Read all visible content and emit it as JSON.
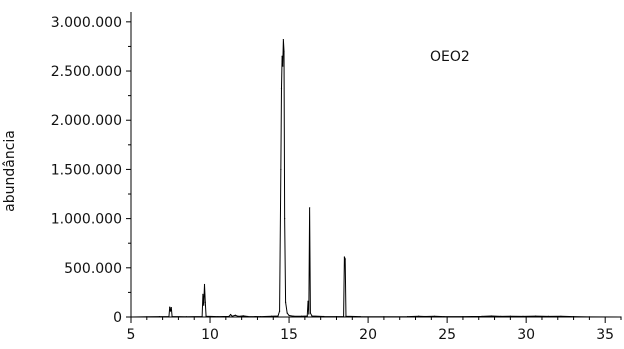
{
  "chart_data": {
    "type": "line",
    "title": "",
    "xlabel": "",
    "ylabel": "abundância",
    "annotation": "OEO2",
    "xlim": [
      5,
      36
    ],
    "ylim": [
      0,
      3100000
    ],
    "x_ticks": [
      5,
      10,
      15,
      20,
      25,
      30,
      35
    ],
    "x_tick_labels": [
      "5",
      "10",
      "15",
      "20",
      "25",
      "30",
      "35"
    ],
    "y_ticks": [
      0,
      500000,
      1000000,
      1500000,
      2000000,
      2500000,
      3000000
    ],
    "y_tick_labels": [
      "0",
      "500.000",
      "1.000.000",
      "1.500.000",
      "2.000.000",
      "2.500.000",
      "3.000.000"
    ],
    "grid": false,
    "legend": "none",
    "line_color": "#000000",
    "series": [
      {
        "points": [
          [
            5.0,
            0
          ],
          [
            6.0,
            2000
          ],
          [
            6.8,
            4000
          ],
          [
            7.4,
            5000
          ],
          [
            7.45,
            100000
          ],
          [
            7.5,
            60000
          ],
          [
            7.55,
            95000
          ],
          [
            7.6,
            5000
          ],
          [
            8.5,
            3000
          ],
          [
            9.5,
            5000
          ],
          [
            9.55,
            230000
          ],
          [
            9.6,
            120000
          ],
          [
            9.65,
            330000
          ],
          [
            9.7,
            150000
          ],
          [
            9.75,
            8000
          ],
          [
            10.5,
            4000
          ],
          [
            11.2,
            6000
          ],
          [
            11.3,
            25000
          ],
          [
            11.4,
            8000
          ],
          [
            11.6,
            18000
          ],
          [
            11.8,
            6000
          ],
          [
            12.1,
            12000
          ],
          [
            12.4,
            5000
          ],
          [
            13.2,
            4000
          ],
          [
            13.9,
            8000
          ],
          [
            14.3,
            10000
          ],
          [
            14.4,
            60000
          ],
          [
            14.48,
            1500000
          ],
          [
            14.52,
            2320000
          ],
          [
            14.56,
            2650000
          ],
          [
            14.6,
            2550000
          ],
          [
            14.64,
            2820000
          ],
          [
            14.68,
            2700000
          ],
          [
            14.72,
            1000000
          ],
          [
            14.78,
            150000
          ],
          [
            14.88,
            40000
          ],
          [
            15.0,
            15000
          ],
          [
            15.3,
            8000
          ],
          [
            15.8,
            8000
          ],
          [
            16.15,
            10000
          ],
          [
            16.2,
            160000
          ],
          [
            16.25,
            30000
          ],
          [
            16.3,
            1110000
          ],
          [
            16.35,
            40000
          ],
          [
            16.45,
            10000
          ],
          [
            17.2,
            5000
          ],
          [
            18.0,
            4000
          ],
          [
            18.45,
            5000
          ],
          [
            18.5,
            610000
          ],
          [
            18.55,
            590000
          ],
          [
            18.6,
            8000
          ],
          [
            19.5,
            4000
          ],
          [
            21.0,
            3000
          ],
          [
            22.5,
            4000
          ],
          [
            23.2,
            8000
          ],
          [
            23.6,
            5000
          ],
          [
            24.2,
            7000
          ],
          [
            24.8,
            4000
          ],
          [
            26.0,
            4000
          ],
          [
            27.2,
            6000
          ],
          [
            27.8,
            10000
          ],
          [
            28.4,
            6000
          ],
          [
            29.0,
            8000
          ],
          [
            29.8,
            6000
          ],
          [
            30.6,
            9000
          ],
          [
            31.4,
            6000
          ],
          [
            32.2,
            7000
          ],
          [
            33.0,
            4000
          ],
          [
            34.0,
            1000
          ],
          [
            36.0,
            0
          ]
        ]
      }
    ]
  }
}
